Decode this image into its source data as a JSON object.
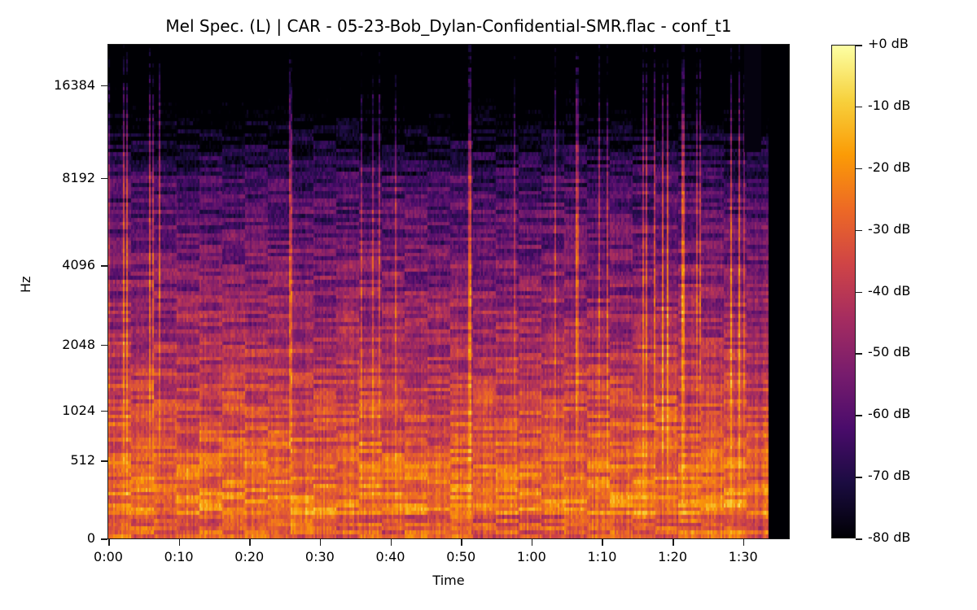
{
  "chart_data": {
    "type": "heatmap",
    "subtype": "mel-spectrogram",
    "title": "Mel Spec. (L) | CAR - 05-23-Bob_Dylan-Confidential-SMR.flac - conf_t1",
    "xlabel": "Time",
    "ylabel": "Hz",
    "x_ticks": [
      "0:00",
      "0:10",
      "0:20",
      "0:30",
      "0:40",
      "0:50",
      "1:00",
      "1:10",
      "1:20",
      "1:30"
    ],
    "x_tick_seconds": [
      0,
      10,
      20,
      30,
      40,
      50,
      60,
      70,
      80,
      90
    ],
    "xlim_seconds": [
      0,
      96.5
    ],
    "audio_end_seconds": 93.5,
    "y_ticks": [
      "0",
      "512",
      "1024",
      "2048",
      "4096",
      "8192",
      "16384"
    ],
    "y_tick_hz": [
      0,
      512,
      1024,
      2048,
      4096,
      8192,
      16384
    ],
    "ylim_hz": [
      0,
      22050
    ],
    "y_scale": "mel",
    "colormap": "inferno",
    "colorbar": {
      "label_format": "%+2.0f dB",
      "ticks": [
        "+0 dB",
        "-10 dB",
        "-20 dB",
        "-30 dB",
        "-40 dB",
        "-50 dB",
        "-60 dB",
        "-70 dB",
        "-80 dB"
      ],
      "values": [
        0,
        -10,
        -20,
        -30,
        -40,
        -50,
        -60,
        -70,
        -80
      ],
      "range_db": [
        -80,
        0
      ]
    },
    "description": "Energy concentrated below ~1 kHz (bright orange/yellow, -10 to -20 dB); mid band 1-4 kHz at -30 to -45 dB with horizontal harmonic bands; high frequencies above ~6 kHz mostly -60 to -80 dB with frequent vertical transient streaks reaching ~16-20 kHz; signal ends at ~1:33.5 followed by silence (-80 dB)."
  },
  "colors": {
    "inferno_stops": [
      "#000004",
      "#1b0c41",
      "#4a0c6b",
      "#781c6d",
      "#a52c60",
      "#cf4446",
      "#ed6925",
      "#fb9b06",
      "#f7d13d",
      "#fcffa4"
    ]
  }
}
